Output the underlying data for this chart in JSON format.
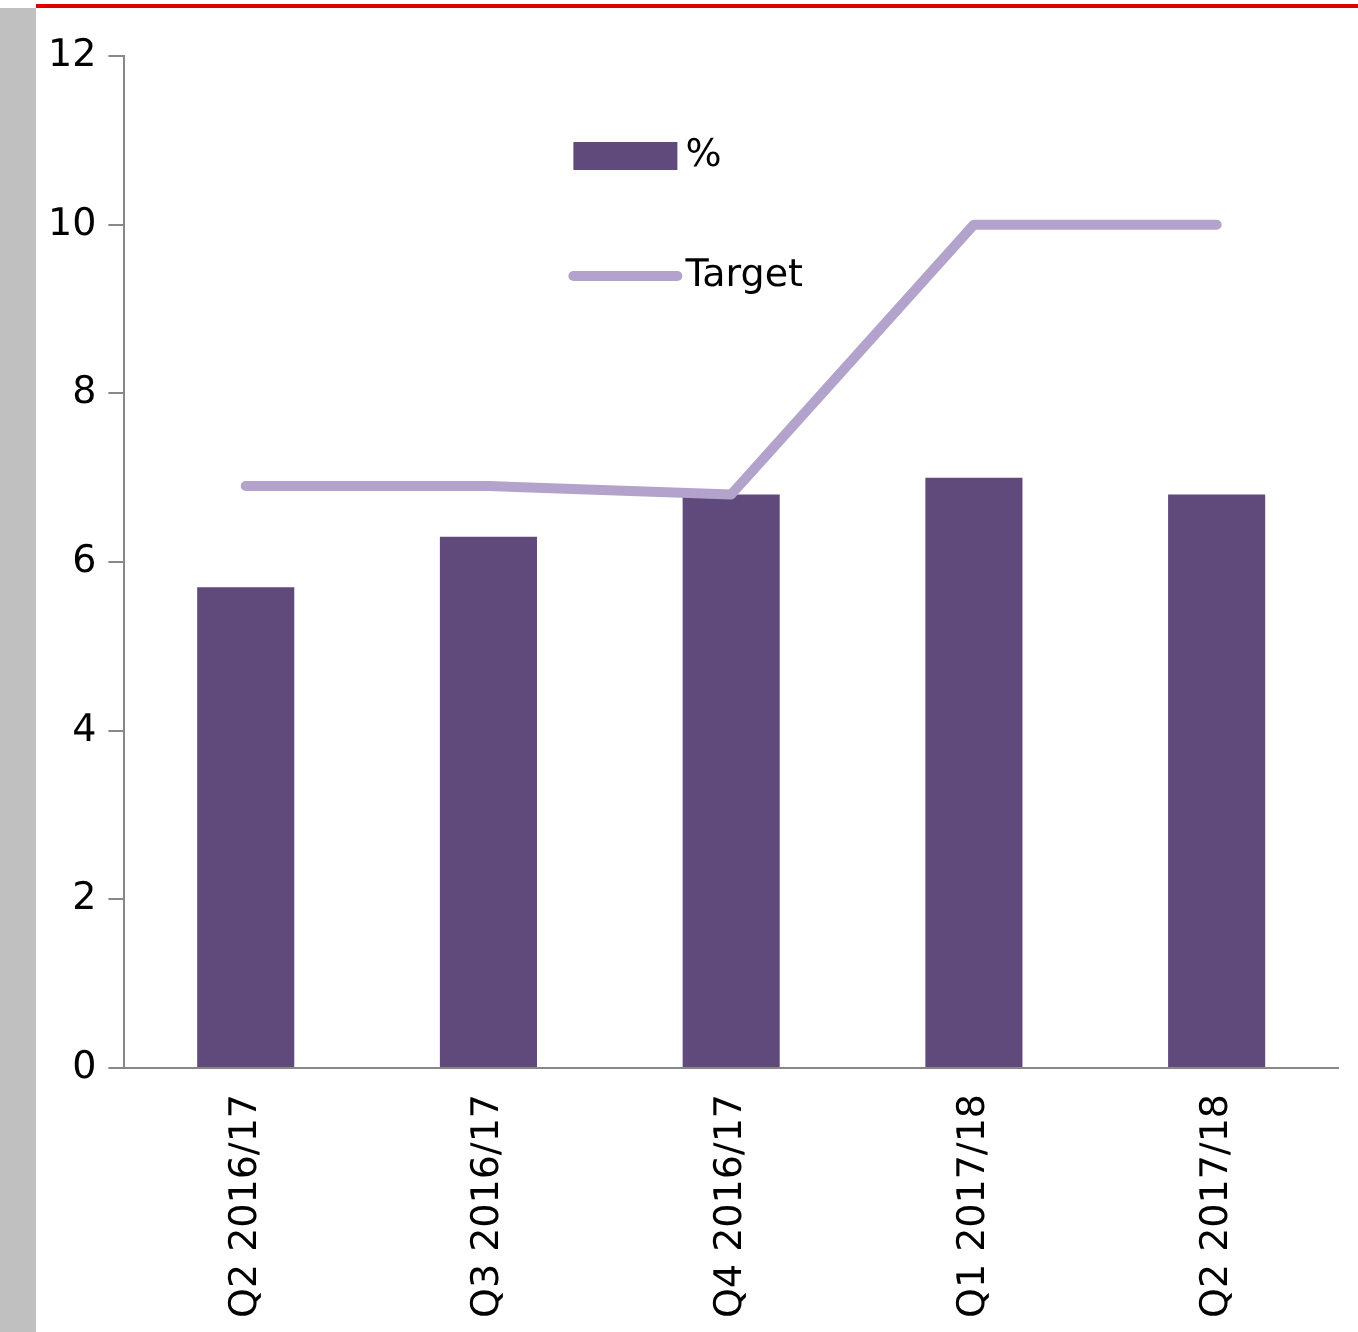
{
  "chart_data": {
    "type": "bar",
    "categories": [
      "Q2 2016/17",
      "Q3 2016/17",
      "Q4 2016/17",
      "Q1 2017/18",
      "Q2 2017/18"
    ],
    "series": [
      {
        "name": "%",
        "color": "#5f4a7b",
        "values": [
          5.7,
          6.3,
          6.8,
          7.0,
          6.8
        ]
      },
      {
        "name": "Target",
        "type": "line",
        "color": "#b3a2cc",
        "values": [
          6.9,
          6.9,
          6.8,
          10,
          10
        ]
      }
    ],
    "ylim": [
      0,
      12
    ],
    "yticks": [
      0,
      2,
      4,
      6,
      8,
      10,
      12
    ],
    "grid": false,
    "legend": "top",
    "marker": "none"
  }
}
